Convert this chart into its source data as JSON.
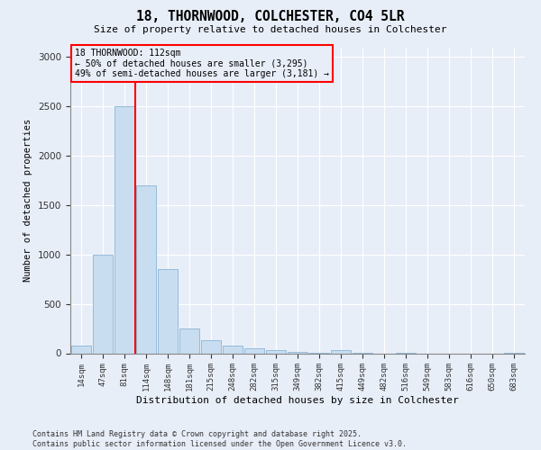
{
  "title1": "18, THORNWOOD, COLCHESTER, CO4 5LR",
  "title2": "Size of property relative to detached houses in Colchester",
  "xlabel": "Distribution of detached houses by size in Colchester",
  "ylabel": "Number of detached properties",
  "categories": [
    "14sqm",
    "47sqm",
    "81sqm",
    "114sqm",
    "148sqm",
    "181sqm",
    "215sqm",
    "248sqm",
    "282sqm",
    "315sqm",
    "349sqm",
    "382sqm",
    "415sqm",
    "449sqm",
    "482sqm",
    "516sqm",
    "549sqm",
    "583sqm",
    "616sqm",
    "650sqm",
    "683sqm"
  ],
  "values": [
    75,
    1000,
    2500,
    1700,
    850,
    250,
    130,
    75,
    50,
    30,
    10,
    5,
    30,
    5,
    0,
    5,
    0,
    0,
    0,
    0,
    5
  ],
  "bar_color": "#c8ddf0",
  "bar_edge_color": "#8ab4d4",
  "vline_color": "red",
  "vline_x_index": 2.5,
  "annotation_text": "18 THORNWOOD: 112sqm\n← 50% of detached houses are smaller (3,295)\n49% of semi-detached houses are larger (3,181) →",
  "annotation_box_edge_color": "red",
  "ylim": [
    0,
    3100
  ],
  "yticks": [
    0,
    500,
    1000,
    1500,
    2000,
    2500,
    3000
  ],
  "footer1": "Contains HM Land Registry data © Crown copyright and database right 2025.",
  "footer2": "Contains public sector information licensed under the Open Government Licence v3.0.",
  "bg_color": "#e8eef8",
  "grid_color": "white"
}
